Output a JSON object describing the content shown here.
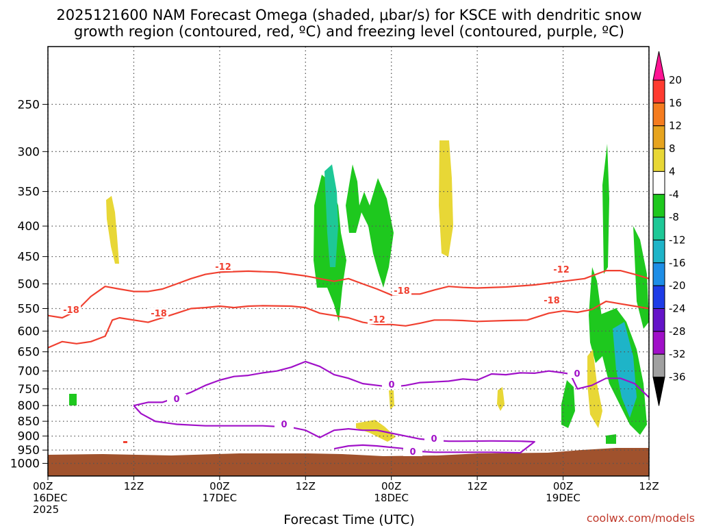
{
  "chart_data": {
    "type": "heatmap",
    "title_line1": "2025121600 NAM Forecast Omega (shaded, μbar/s) for KSCE with dendritic snow",
    "title_line2": "growth region (contoured, red, ºC) and freezing level (contoured, purple, ºC)",
    "xlabel": "Forecast Time (UTC)",
    "credit": "coolwx.com/models",
    "y_axis": {
      "scale": "log-pressure",
      "inverted": true,
      "ticks": [
        250,
        300,
        350,
        400,
        450,
        500,
        550,
        600,
        650,
        700,
        750,
        800,
        850,
        900,
        950,
        1000
      ],
      "range": [
        200,
        1050
      ]
    },
    "x_axis": {
      "range_hours": [
        0,
        84
      ],
      "ticks": [
        {
          "hour": 0,
          "labels": [
            "00Z",
            "16DEC",
            "2025"
          ]
        },
        {
          "hour": 12,
          "labels": [
            "12Z"
          ]
        },
        {
          "hour": 24,
          "labels": [
            "00Z",
            "17DEC"
          ]
        },
        {
          "hour": 36,
          "labels": [
            "12Z"
          ]
        },
        {
          "hour": 48,
          "labels": [
            "00Z",
            "18DEC"
          ]
        },
        {
          "hour": 60,
          "labels": [
            "12Z"
          ]
        },
        {
          "hour": 72,
          "labels": [
            "00Z",
            "19DEC"
          ]
        },
        {
          "hour": 84,
          "labels": [
            "12Z"
          ]
        }
      ]
    },
    "grid": true,
    "colorbar": {
      "position": "right",
      "levels": [
        20,
        16,
        12,
        8,
        4,
        -4,
        -8,
        -12,
        -16,
        -20,
        -24,
        -28,
        -32,
        -36
      ],
      "colors": [
        "#ff1493",
        "#ff3b30",
        "#f57c1f",
        "#e6a41f",
        "#e8d736",
        "#ffffff",
        "#1ec81e",
        "#1ec897",
        "#1eb4c8",
        "#1e8ee6",
        "#1e3ce6",
        "#6414c8",
        "#a010c8",
        "#a0a0a0",
        "#000000"
      ]
    },
    "contour_labels": {
      "red": [
        "-18",
        "-12",
        "-18",
        "-12",
        "-18",
        "-12",
        "-18",
        "-12"
      ],
      "purple": [
        "0",
        "0",
        "0",
        "0",
        "0",
        "0"
      ]
    },
    "series": [
      {
        "name": "-18",
        "color": "#f04030",
        "points": [
          [
            0,
            565
          ],
          [
            2,
            570
          ],
          [
            4,
            555
          ],
          [
            6,
            525
          ],
          [
            8,
            505
          ],
          [
            10,
            510
          ],
          [
            12,
            515
          ],
          [
            14,
            515
          ],
          [
            16,
            510
          ],
          [
            18,
            500
          ],
          [
            20,
            490
          ],
          [
            22,
            482
          ],
          [
            24,
            478
          ],
          [
            28,
            476
          ],
          [
            32,
            478
          ],
          [
            36,
            485
          ],
          [
            40,
            495
          ],
          [
            42,
            490
          ],
          [
            44,
            500
          ],
          [
            46,
            510
          ],
          [
            48,
            522
          ],
          [
            50,
            520
          ],
          [
            52,
            520
          ],
          [
            54,
            512
          ],
          [
            56,
            505
          ],
          [
            58,
            507
          ],
          [
            60,
            508
          ],
          [
            64,
            506
          ],
          [
            68,
            502
          ],
          [
            72,
            495
          ],
          [
            75,
            490
          ],
          [
            78,
            475
          ],
          [
            80,
            475
          ],
          [
            82,
            482
          ],
          [
            84,
            490
          ]
        ]
      },
      {
        "name": "-12",
        "color": "#f04030",
        "points": [
          [
            0,
            640
          ],
          [
            2,
            625
          ],
          [
            4,
            630
          ],
          [
            6,
            625
          ],
          [
            8,
            612
          ],
          [
            9,
            575
          ],
          [
            10,
            570
          ],
          [
            12,
            575
          ],
          [
            14,
            580
          ],
          [
            16,
            570
          ],
          [
            18,
            560
          ],
          [
            20,
            550
          ],
          [
            22,
            548
          ],
          [
            24,
            545
          ],
          [
            26,
            548
          ],
          [
            28,
            545
          ],
          [
            30,
            544
          ],
          [
            34,
            545
          ],
          [
            36,
            548
          ],
          [
            38,
            560
          ],
          [
            40,
            565
          ],
          [
            42,
            570
          ],
          [
            44,
            580
          ],
          [
            46,
            585
          ],
          [
            48,
            585
          ],
          [
            50,
            588
          ],
          [
            52,
            582
          ],
          [
            54,
            575
          ],
          [
            56,
            575
          ],
          [
            58,
            576
          ],
          [
            60,
            578
          ],
          [
            64,
            576
          ],
          [
            67,
            575
          ],
          [
            70,
            560
          ],
          [
            72,
            555
          ],
          [
            74,
            558
          ],
          [
            76,
            552
          ],
          [
            78,
            535
          ],
          [
            80,
            540
          ],
          [
            82,
            545
          ],
          [
            84,
            550
          ]
        ]
      },
      {
        "name": "0",
        "color": "#a010c8",
        "points": [
          [
            12,
            800
          ],
          [
            14,
            790
          ],
          [
            16,
            790
          ],
          [
            18,
            775
          ],
          [
            20,
            760
          ],
          [
            22,
            740
          ],
          [
            24,
            725
          ],
          [
            26,
            715
          ],
          [
            28,
            712
          ],
          [
            30,
            705
          ],
          [
            32,
            700
          ],
          [
            34,
            690
          ],
          [
            36,
            675
          ],
          [
            38,
            688
          ],
          [
            40,
            710
          ],
          [
            42,
            720
          ],
          [
            44,
            735
          ],
          [
            46,
            740
          ],
          [
            48,
            745
          ],
          [
            50,
            740
          ],
          [
            52,
            732
          ],
          [
            54,
            730
          ],
          [
            56,
            728
          ],
          [
            58,
            722
          ],
          [
            60,
            725
          ],
          [
            62,
            708
          ],
          [
            64,
            710
          ],
          [
            66,
            705
          ],
          [
            68,
            706
          ],
          [
            70,
            700
          ],
          [
            72,
            705
          ],
          [
            73,
            708
          ],
          [
            74,
            750
          ],
          [
            76,
            740
          ],
          [
            78,
            720
          ],
          [
            80,
            720
          ],
          [
            82,
            735
          ],
          [
            84,
            775
          ]
        ]
      },
      {
        "name": "0",
        "color": "#a010c8",
        "points": [
          [
            12,
            800
          ],
          [
            13,
            825
          ],
          [
            15,
            850
          ],
          [
            18,
            860
          ],
          [
            22,
            865
          ],
          [
            26,
            865
          ],
          [
            30,
            865
          ],
          [
            34,
            870
          ],
          [
            36,
            880
          ],
          [
            38,
            905
          ],
          [
            40,
            880
          ],
          [
            42,
            875
          ],
          [
            44,
            880
          ],
          [
            46,
            880
          ],
          [
            48,
            890
          ],
          [
            50,
            900
          ],
          [
            52,
            910
          ],
          [
            54,
            915
          ],
          [
            56,
            918
          ],
          [
            58,
            918
          ],
          [
            62,
            917
          ],
          [
            66,
            918
          ],
          [
            68,
            920
          ],
          [
            66,
            960
          ],
          [
            62,
            958
          ],
          [
            58,
            958
          ],
          [
            54,
            958
          ],
          [
            52,
            955
          ],
          [
            50,
            945
          ],
          [
            48,
            940
          ],
          [
            46,
            935
          ],
          [
            44,
            932
          ],
          [
            42,
            935
          ],
          [
            40,
            945
          ]
        ]
      }
    ]
  }
}
